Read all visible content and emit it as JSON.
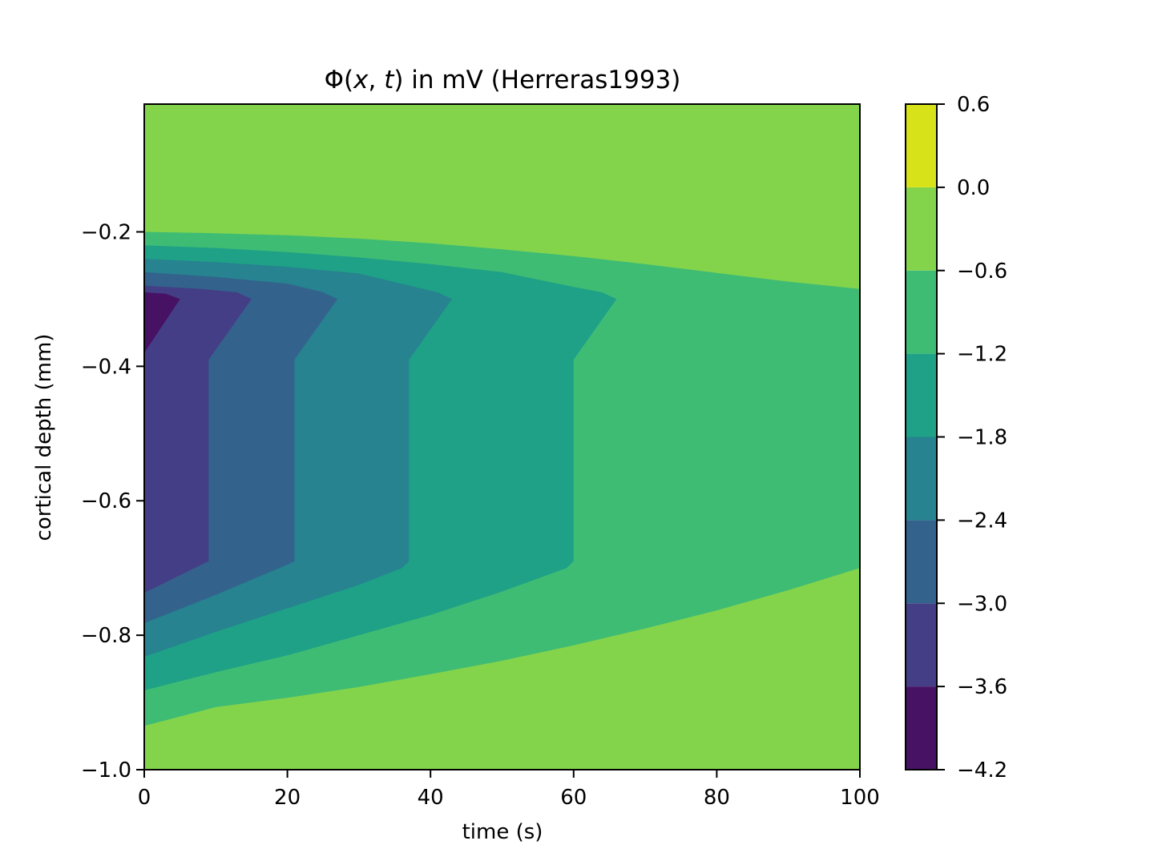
{
  "chart_data": {
    "type": "contourf",
    "title": {
      "prefix": "Φ(",
      "x_var": "x",
      "sep": ", ",
      "t_var": "t",
      "suffix": ") in mV (Herreras1993)"
    },
    "xlabel": "time (s)",
    "ylabel": "cortical depth (mm)",
    "xlim": [
      0,
      100
    ],
    "ylim": [
      -1.0,
      -0.01
    ],
    "x_ticks": [
      {
        "value": 0,
        "label": "0"
      },
      {
        "value": 20,
        "label": "20"
      },
      {
        "value": 40,
        "label": "40"
      },
      {
        "value": 60,
        "label": "60"
      },
      {
        "value": 80,
        "label": "80"
      },
      {
        "value": 100,
        "label": "100"
      }
    ],
    "y_ticks": [
      {
        "value": -0.2,
        "label": "−0.2"
      },
      {
        "value": -0.4,
        "label": "−0.4"
      },
      {
        "value": -0.6,
        "label": "−0.6"
      },
      {
        "value": -0.8,
        "label": "−0.8"
      },
      {
        "value": -1.0,
        "label": "−1.0"
      }
    ],
    "colorbar": {
      "levels": [
        -4.2,
        -3.6,
        -3.0,
        -2.4,
        -1.8,
        -1.2,
        -0.6,
        0.0,
        0.6
      ],
      "labels": [
        "−4.2",
        "−3.6",
        "−3.0",
        "−2.4",
        "−1.8",
        "−1.2",
        "−0.6",
        "0.0",
        "0.6"
      ],
      "colors": [
        "#471164",
        "#433e85",
        "#33638d",
        "#26838f",
        "#1fa187",
        "#3fbc73",
        "#84d44b",
        "#d8e219"
      ]
    },
    "bands": [
      {
        "level_index": 6,
        "points": [
          [
            0,
            -0.01
          ],
          [
            100,
            -0.01
          ],
          [
            100,
            -1.0
          ],
          [
            0,
            -1.0
          ]
        ]
      },
      {
        "level_index": 5,
        "points": [
          [
            0,
            -0.2
          ],
          [
            10,
            -0.202
          ],
          [
            20,
            -0.205
          ],
          [
            30,
            -0.21
          ],
          [
            40,
            -0.217
          ],
          [
            50,
            -0.226
          ],
          [
            60,
            -0.236
          ],
          [
            70,
            -0.248
          ],
          [
            80,
            -0.261
          ],
          [
            90,
            -0.274
          ],
          [
            100,
            -0.285
          ],
          [
            100,
            -0.7
          ],
          [
            90,
            -0.733
          ],
          [
            80,
            -0.763
          ],
          [
            70,
            -0.79
          ],
          [
            60,
            -0.815
          ],
          [
            50,
            -0.838
          ],
          [
            40,
            -0.858
          ],
          [
            30,
            -0.877
          ],
          [
            20,
            -0.893
          ],
          [
            10,
            -0.907
          ],
          [
            0,
            -0.935
          ]
        ]
      },
      {
        "level_index": 4,
        "points": [
          [
            0,
            -0.22
          ],
          [
            10,
            -0.224
          ],
          [
            20,
            -0.23
          ],
          [
            30,
            -0.238
          ],
          [
            40,
            -0.248
          ],
          [
            50,
            -0.26
          ],
          [
            60,
            -0.282
          ],
          [
            64,
            -0.29
          ],
          [
            66,
            -0.3
          ],
          [
            60,
            -0.39
          ],
          [
            60,
            -0.69
          ],
          [
            59,
            -0.7
          ],
          [
            50,
            -0.735
          ],
          [
            40,
            -0.77
          ],
          [
            30,
            -0.8
          ],
          [
            20,
            -0.83
          ],
          [
            10,
            -0.855
          ],
          [
            0,
            -0.882
          ]
        ]
      },
      {
        "level_index": 3,
        "points": [
          [
            0,
            -0.24
          ],
          [
            10,
            -0.245
          ],
          [
            20,
            -0.252
          ],
          [
            30,
            -0.262
          ],
          [
            41,
            -0.29
          ],
          [
            43,
            -0.3
          ],
          [
            37,
            -0.39
          ],
          [
            37,
            -0.69
          ],
          [
            36,
            -0.7
          ],
          [
            30,
            -0.725
          ],
          [
            20,
            -0.76
          ],
          [
            10,
            -0.795
          ],
          [
            0,
            -0.832
          ]
        ]
      },
      {
        "level_index": 2,
        "points": [
          [
            0,
            -0.26
          ],
          [
            10,
            -0.267
          ],
          [
            20,
            -0.277
          ],
          [
            25,
            -0.29
          ],
          [
            27,
            -0.3
          ],
          [
            21,
            -0.39
          ],
          [
            21,
            -0.69
          ],
          [
            20,
            -0.695
          ],
          [
            10,
            -0.74
          ],
          [
            0,
            -0.782
          ]
        ]
      },
      {
        "level_index": 1,
        "points": [
          [
            0,
            -0.28
          ],
          [
            8,
            -0.285
          ],
          [
            13,
            -0.29
          ],
          [
            15,
            -0.3
          ],
          [
            9,
            -0.39
          ],
          [
            9,
            -0.69
          ],
          [
            8,
            -0.695
          ],
          [
            0,
            -0.737
          ]
        ]
      },
      {
        "level_index": 0,
        "points": [
          [
            0,
            -0.29
          ],
          [
            3,
            -0.292
          ],
          [
            5,
            -0.3
          ],
          [
            0,
            -0.38
          ]
        ]
      }
    ]
  }
}
